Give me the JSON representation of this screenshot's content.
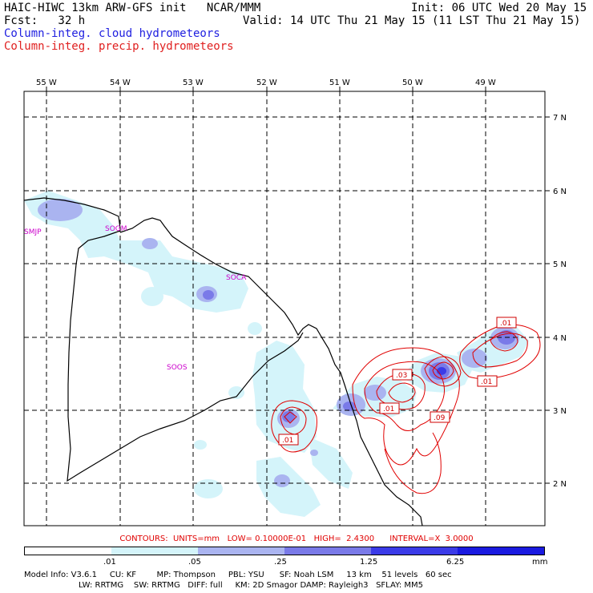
{
  "header": {
    "model_line": "HAIC-HIWC 13km ARW-GFS init   NCAR/MMM",
    "fcst_line": "Fcst:   32 h",
    "init_line": "Init: 06 UTC Wed 20 May 15",
    "valid_line": "Valid: 14 UTC Thu 21 May 15 (11 LST Thu 21 May 15)",
    "field_cloud": "Column-integ. cloud hydrometeors",
    "field_precip": "Column-integ. precip. hydrometeors"
  },
  "map": {
    "lon_labels": [
      "55 W",
      "54 W",
      "53 W",
      "52 W",
      "51 W",
      "50 W",
      "49 W"
    ],
    "lat_labels": [
      "7 N",
      "6 N",
      "5 N",
      "4 N",
      "3 N",
      "2 N"
    ],
    "stations": [
      "SMJP",
      "SOGM",
      "SOCA",
      "SOOS"
    ],
    "contour_labels": [
      ".01",
      ".03",
      ".01",
      ".09",
      ".01",
      ".01"
    ]
  },
  "legend": {
    "contours_text": "CONTOURS:  UNITS=mm   LOW= 0.10000E-01   HIGH=  2.4300      INTERVAL=X  3.0000",
    "colors": [
      "#ffffff",
      "#d4f4fa",
      "#aab4f0",
      "#7a7ae8",
      "#3b3be8",
      "#1a1ae0"
    ],
    "tick_labels": [
      ".01",
      ".05",
      ".25",
      "1.25",
      "6.25",
      "mm"
    ]
  },
  "footer": {
    "line1": "Model Info: V3.6.1     CU: KF        MP: Thompson     PBL: YSU      SF: Noah LSM     13 km    51 levels   60 sec",
    "line2": "LW: RRTMG    SW: RRTMG   DIFF: full     KM: 2D Smagor DAMP: Rayleigh3   SFLAY: MM5"
  }
}
